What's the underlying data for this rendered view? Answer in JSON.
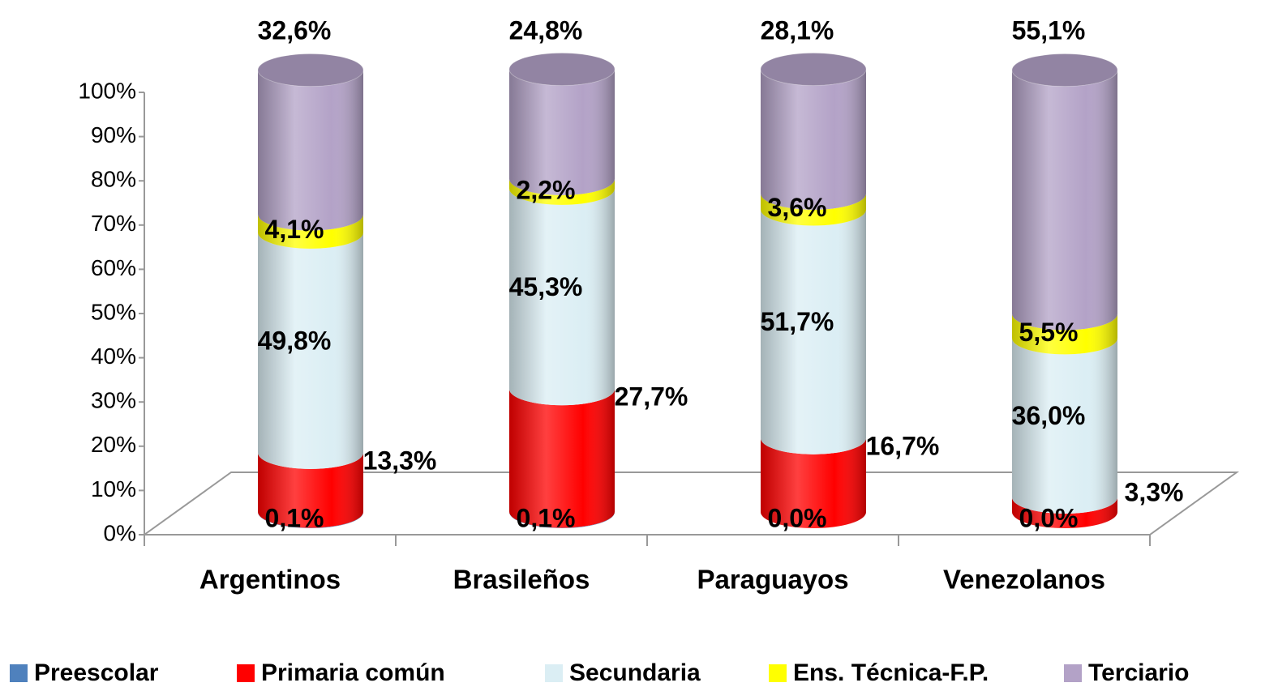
{
  "chart_data": {
    "type": "stacked-cylinder",
    "categories": [
      "Argentinos",
      "Brasileños",
      "Paraguayos",
      "Venezolanos"
    ],
    "series": [
      {
        "name": "Preescolar",
        "color": "#4f81bd",
        "values": [
          0.1,
          0.1,
          0.0,
          0.0
        ],
        "value_labels": [
          "0,1%",
          "0,1%",
          "0,0%",
          "0,0%"
        ]
      },
      {
        "name": "Primaria común",
        "color": "#ff0000",
        "values": [
          13.3,
          27.7,
          16.7,
          3.3
        ],
        "value_labels": [
          "13,3%",
          "27,7%",
          "16,7%",
          "3,3%"
        ]
      },
      {
        "name": "Secundaria",
        "color": "#dbeef4",
        "values": [
          49.8,
          45.3,
          51.7,
          36.0
        ],
        "value_labels": [
          "49,8%",
          "45,3%",
          "51,7%",
          "36,0%"
        ]
      },
      {
        "name": "Ens. Técnica-F.P.",
        "color": "#ffff00",
        "values": [
          4.1,
          2.2,
          3.6,
          5.5
        ],
        "value_labels": [
          "4,1%",
          "2,2%",
          "3,6%",
          "5,5%"
        ]
      },
      {
        "name": "Terciario",
        "color": "#b3a2c7",
        "values": [
          32.6,
          24.8,
          28.1,
          55.1
        ],
        "value_labels": [
          "32,6%",
          "24,8%",
          "28,1%",
          "55,1%"
        ]
      }
    ],
    "ylim": [
      0,
      100
    ],
    "yticks": [
      {
        "value": 0,
        "label": "0%"
      },
      {
        "value": 10,
        "label": "10%"
      },
      {
        "value": 20,
        "label": "20%"
      },
      {
        "value": 30,
        "label": "30%"
      },
      {
        "value": 40,
        "label": "40%"
      },
      {
        "value": 50,
        "label": "50%"
      },
      {
        "value": 60,
        "label": "60%"
      },
      {
        "value": 70,
        "label": "70%"
      },
      {
        "value": 80,
        "label": "80%"
      },
      {
        "value": 90,
        "label": "90%"
      },
      {
        "value": 100,
        "label": "100%"
      }
    ],
    "legend": "bottom"
  }
}
